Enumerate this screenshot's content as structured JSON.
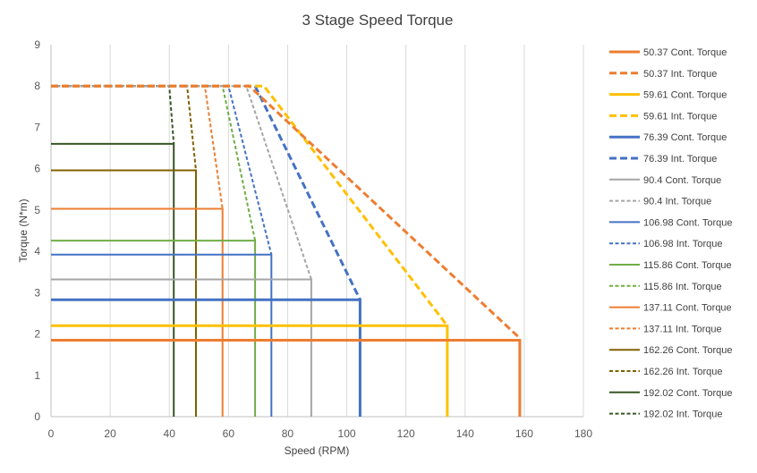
{
  "chart_data": {
    "type": "line",
    "title": "3 Stage Speed Torque",
    "xlabel": "Speed (RPM)",
    "ylabel": "Torque (N*m)",
    "xlim": [
      0,
      180
    ],
    "ylim": [
      0,
      9
    ],
    "x_ticks": [
      "0",
      "20",
      "40",
      "60",
      "80",
      "100",
      "120",
      "140",
      "160",
      "180"
    ],
    "y_ticks": [
      "0",
      "1",
      "2",
      "3",
      "4",
      "5",
      "6",
      "7",
      "8",
      "9"
    ],
    "grid": "vertical",
    "legend_position": "right",
    "series": [
      {
        "name": "50.37 Cont. Torque",
        "color": "#ED7D31",
        "dash": false,
        "width": 3,
        "points": [
          [
            0,
            1.85
          ],
          [
            158.5,
            1.85
          ],
          [
            158.5,
            0
          ]
        ]
      },
      {
        "name": "50.37 Int. Torque",
        "color": "#ED7D31",
        "dash": true,
        "width": 3,
        "points": [
          [
            0,
            8
          ],
          [
            67,
            8
          ],
          [
            158.5,
            1.9
          ]
        ]
      },
      {
        "name": "59.61 Cont. Torque",
        "color": "#FFC000",
        "dash": false,
        "width": 3,
        "points": [
          [
            0,
            2.2
          ],
          [
            134,
            2.2
          ],
          [
            134,
            0
          ]
        ]
      },
      {
        "name": "59.61 Int. Torque",
        "color": "#FFC000",
        "dash": true,
        "width": 3,
        "points": [
          [
            0,
            8
          ],
          [
            72,
            8
          ],
          [
            134,
            2.2
          ]
        ]
      },
      {
        "name": "76.39 Cont. Torque",
        "color": "#4472C4",
        "dash": false,
        "width": 3,
        "points": [
          [
            0,
            2.83
          ],
          [
            104.5,
            2.83
          ],
          [
            104.5,
            0
          ]
        ]
      },
      {
        "name": "76.39 Int. Torque",
        "color": "#4472C4",
        "dash": true,
        "width": 3,
        "points": [
          [
            0,
            8
          ],
          [
            69,
            8
          ],
          [
            104.5,
            2.83
          ]
        ]
      },
      {
        "name": "90.4 Cont. Torque",
        "color": "#A5A5A5",
        "dash": false,
        "width": 2,
        "points": [
          [
            0,
            3.32
          ],
          [
            88,
            3.32
          ],
          [
            88,
            0
          ]
        ]
      },
      {
        "name": "90.4 Int. Torque",
        "color": "#A5A5A5",
        "dash": true,
        "width": 2,
        "points": [
          [
            0,
            8
          ],
          [
            66,
            8
          ],
          [
            88,
            3.32
          ]
        ]
      },
      {
        "name": "106.98 Cont. Torque",
        "color": "#4472C4",
        "dash": false,
        "width": 2,
        "points": [
          [
            0,
            3.92
          ],
          [
            74.5,
            3.92
          ],
          [
            74.5,
            0
          ]
        ]
      },
      {
        "name": "106.98 Int. Torque",
        "color": "#4472C4",
        "dash": true,
        "width": 2,
        "points": [
          [
            0,
            8
          ],
          [
            60,
            8
          ],
          [
            74.5,
            3.92
          ]
        ]
      },
      {
        "name": "115.86 Cont. Torque",
        "color": "#70AD47",
        "dash": false,
        "width": 2,
        "points": [
          [
            0,
            4.26
          ],
          [
            69,
            4.26
          ],
          [
            69,
            0
          ]
        ]
      },
      {
        "name": "115.86 Int. Torque",
        "color": "#70AD47",
        "dash": true,
        "width": 2,
        "points": [
          [
            0,
            8
          ],
          [
            58,
            8
          ],
          [
            69,
            4.26
          ]
        ]
      },
      {
        "name": "137.11 Cont. Torque",
        "color": "#ED7D31",
        "dash": false,
        "width": 2,
        "points": [
          [
            0,
            5.03
          ],
          [
            58,
            5.03
          ],
          [
            58,
            0
          ]
        ]
      },
      {
        "name": "137.11 Int. Torque",
        "color": "#ED7D31",
        "dash": true,
        "width": 2,
        "points": [
          [
            0,
            8
          ],
          [
            52,
            8
          ],
          [
            58,
            5.03
          ]
        ]
      },
      {
        "name": "162.26 Cont. Torque",
        "color": "#806000",
        "dash": false,
        "width": 2,
        "points": [
          [
            0,
            5.96
          ],
          [
            49,
            5.96
          ],
          [
            49,
            0
          ]
        ]
      },
      {
        "name": "162.26 Int. Torque",
        "color": "#806000",
        "dash": true,
        "width": 2,
        "points": [
          [
            0,
            8
          ],
          [
            46,
            8
          ],
          [
            49,
            5.96
          ]
        ]
      },
      {
        "name": "192.02 Cont. Torque",
        "color": "#375623",
        "dash": false,
        "width": 2,
        "points": [
          [
            0,
            6.6
          ],
          [
            41.5,
            6.6
          ],
          [
            41.5,
            0
          ]
        ]
      },
      {
        "name": "192.02 Int. Torque",
        "color": "#375623",
        "dash": true,
        "width": 2,
        "points": [
          [
            0,
            8
          ],
          [
            40,
            8
          ],
          [
            41.5,
            6.6
          ]
        ]
      }
    ]
  }
}
